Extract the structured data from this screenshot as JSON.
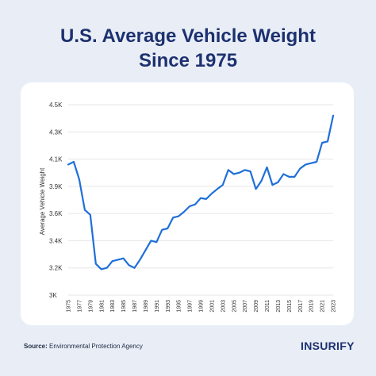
{
  "header": {
    "title_line1": "U.S. Average Vehicle Weight",
    "title_line2": "Since 1975"
  },
  "footer": {
    "source_label": "Source:",
    "source_text": "Environmental Protection Agency",
    "logo_text": "INSURIFY"
  },
  "colors": {
    "background": "#e9eef6",
    "title": "#1d3170",
    "line": "#1f6fd9",
    "logo_accent": "#f26a2f"
  },
  "chart_data": {
    "type": "line",
    "title": "U.S. Average Vehicle Weight Since 1975",
    "xlabel": "",
    "ylabel": "Average Vehicle Weight",
    "ylim": [
      3000,
      4500
    ],
    "grid": true,
    "y_ticks": [
      {
        "value": 3000,
        "label": "3K"
      },
      {
        "value": 3200,
        "label": "3.2K"
      },
      {
        "value": 3400,
        "label": "3.4K"
      },
      {
        "value": 3600,
        "label": "3.6K"
      },
      {
        "value": 3900,
        "label": "3.9K"
      },
      {
        "value": 4100,
        "label": "4.1K"
      },
      {
        "value": 4300,
        "label": "4.3K"
      },
      {
        "value": 4500,
        "label": "4.5K"
      }
    ],
    "x_tick_labels": [
      "1975",
      "1977",
      "1979",
      "1981",
      "1983",
      "1985",
      "1987",
      "1989",
      "1991",
      "1993",
      "1995",
      "1997",
      "1999",
      "2001",
      "2003",
      "2005",
      "2007",
      "2009",
      "2011",
      "2013",
      "2015",
      "2017",
      "2019",
      "2021",
      "2023"
    ],
    "series": [
      {
        "x": [
          1975,
          1976,
          1977,
          1978,
          1979,
          1980,
          1981,
          1982,
          1983,
          1984,
          1985,
          1986,
          1987,
          1988,
          1989,
          1990,
          1991,
          1992,
          1993,
          1994,
          1995,
          1996,
          1997,
          1998,
          1999,
          2000,
          2001,
          2002,
          2003,
          2004,
          2005,
          2006,
          2007,
          2008,
          2009,
          2010,
          2011,
          2012,
          2013,
          2014,
          2015,
          2016,
          2017,
          2018,
          2019,
          2020,
          2021,
          2022,
          2023
        ],
        "y": [
          4060,
          4080,
          3950,
          3640,
          3590,
          3230,
          3190,
          3200,
          3250,
          3260,
          3270,
          3220,
          3200,
          3260,
          3330,
          3400,
          3390,
          3480,
          3490,
          3570,
          3580,
          3620,
          3680,
          3700,
          3770,
          3760,
          3820,
          3870,
          3910,
          4020,
          3990,
          4000,
          4020,
          4010,
          3870,
          3940,
          4040,
          3910,
          3930,
          3990,
          3970,
          3970,
          4030,
          4060,
          4070,
          4080,
          4220,
          4230,
          4420
        ]
      }
    ]
  }
}
